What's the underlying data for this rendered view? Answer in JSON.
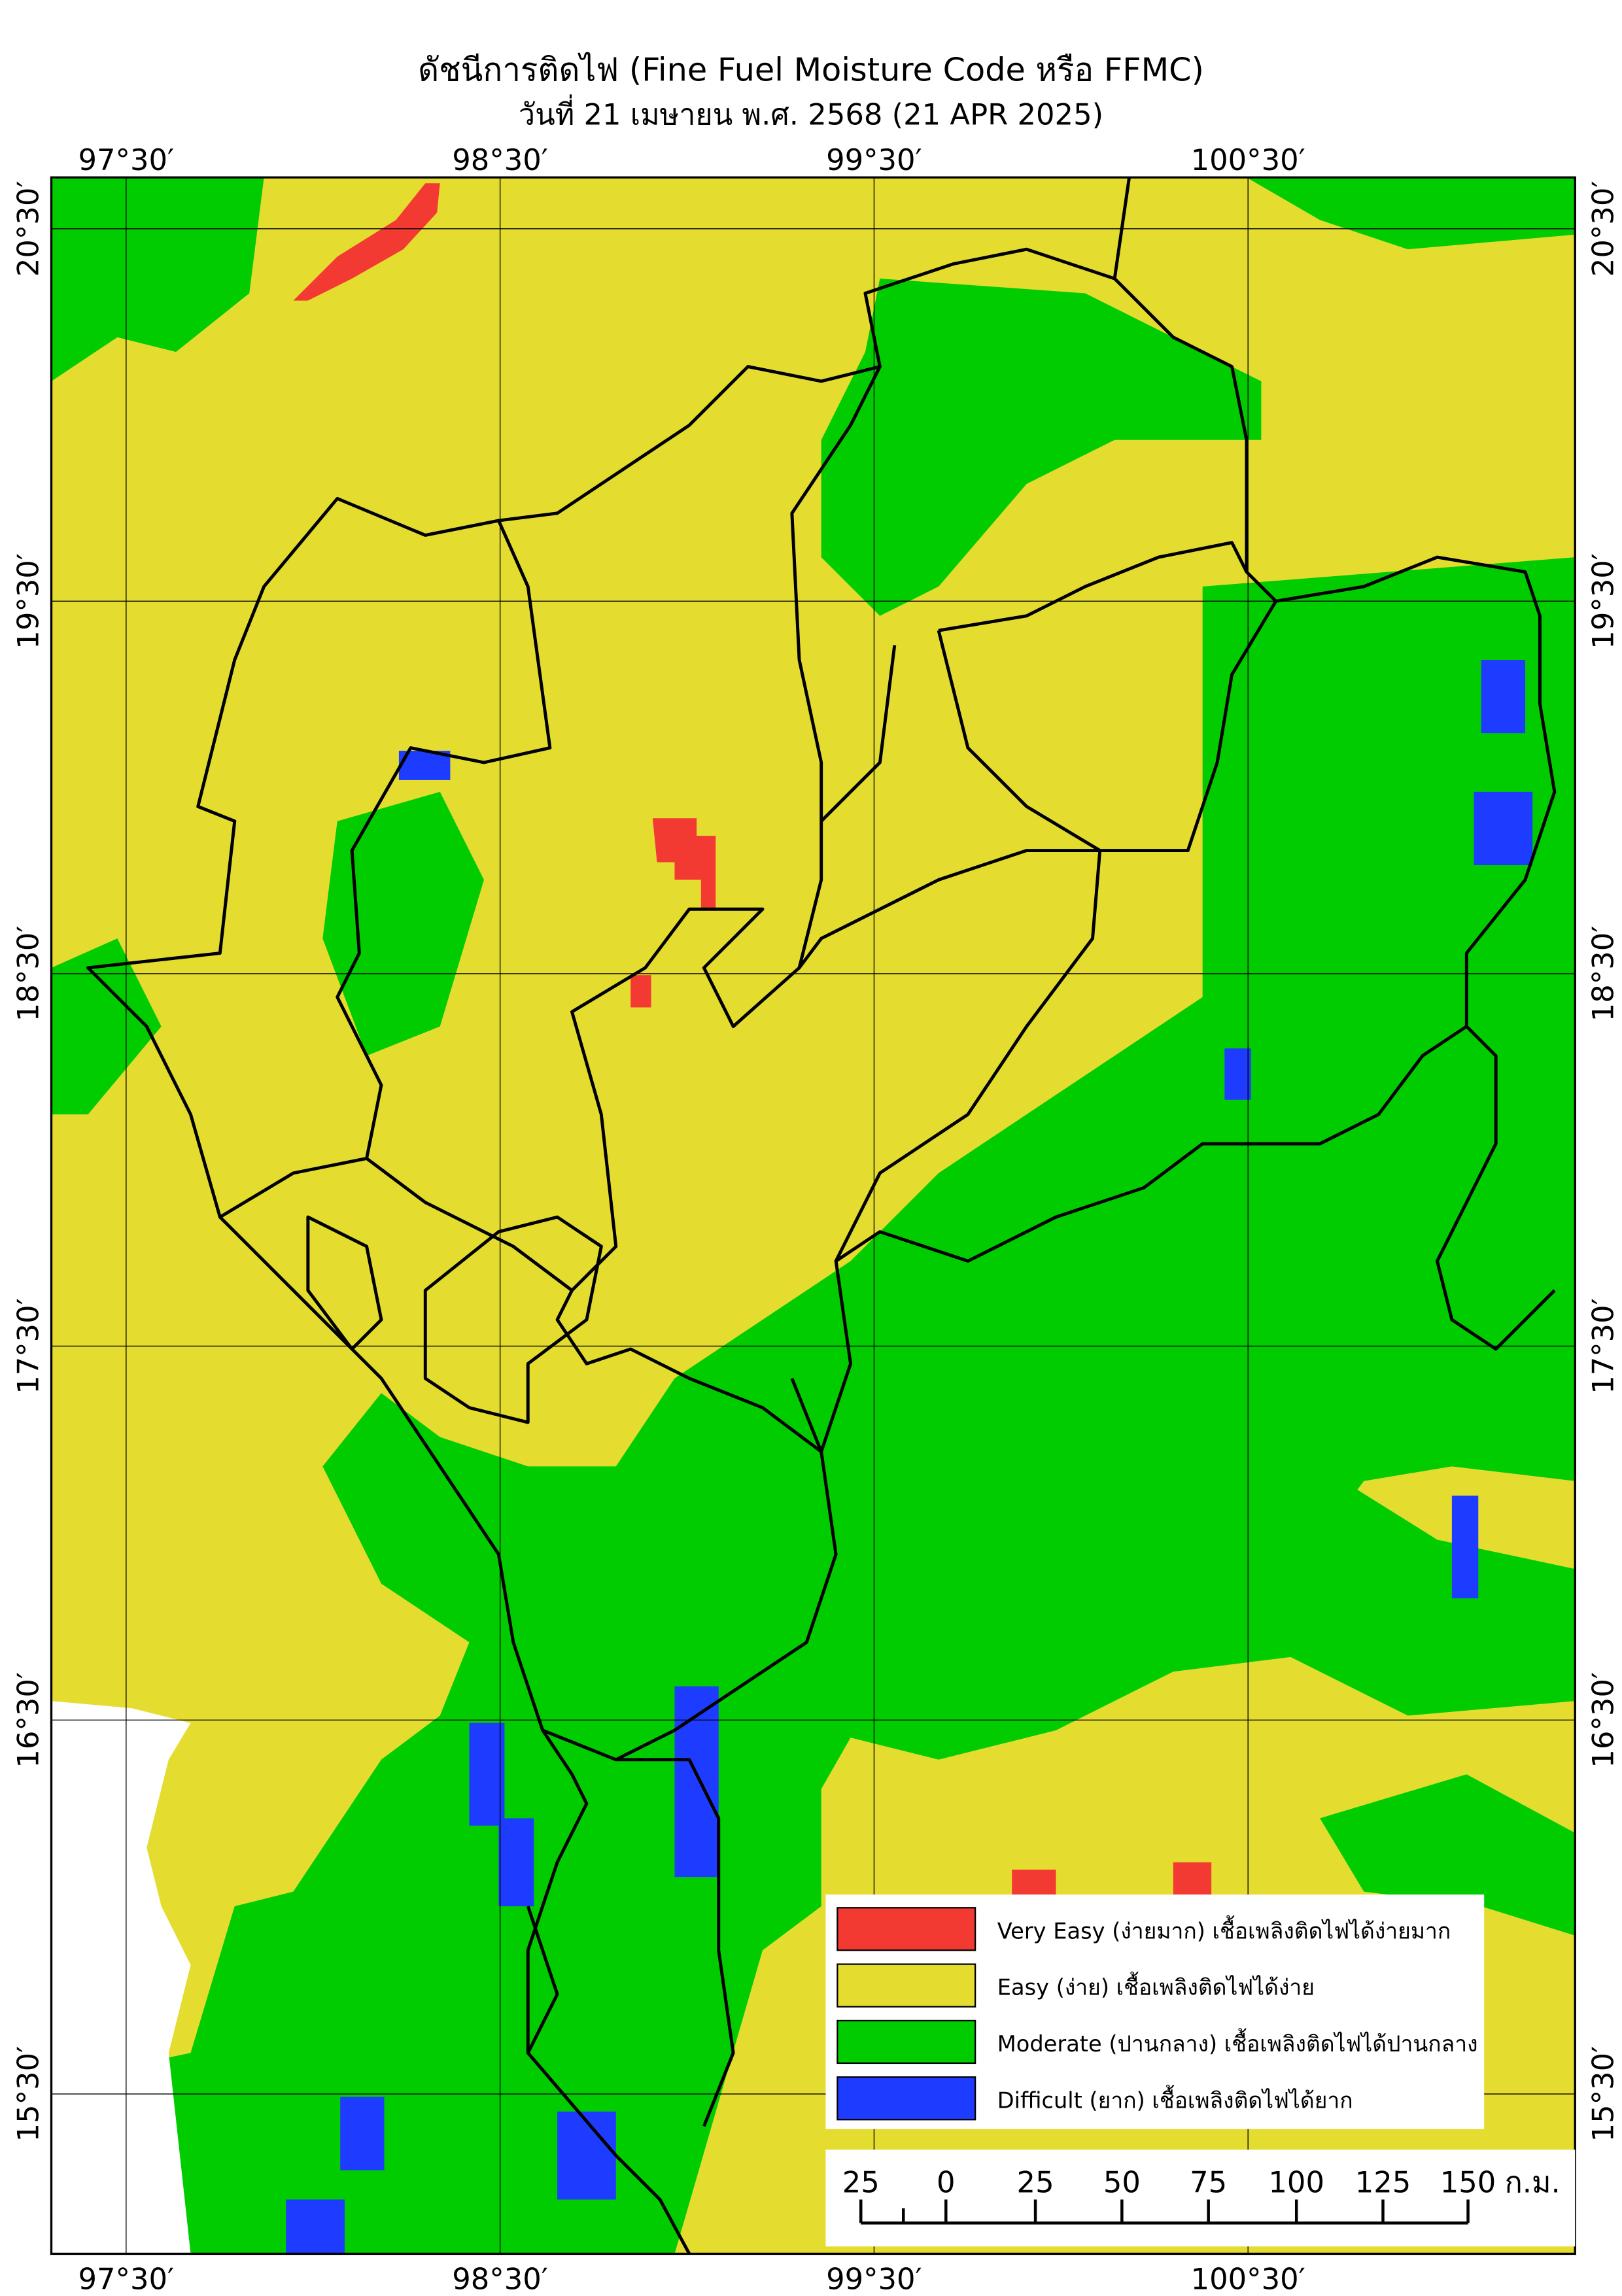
{
  "header": {
    "title": "ดัชนีการติดไฟ (Fine Fuel Moisture Code หรือ FFMC)",
    "subtitle": "วันที่ 21 เมษายน พ.ศ. 2568 (21 APR 2025)"
  },
  "map": {
    "longitude_labels": [
      "97°30′",
      "98°30′",
      "99°30′",
      "100°30′"
    ],
    "latitude_labels": [
      "20°30′",
      "19°30′",
      "18°30′",
      "17°30′",
      "16°30′",
      "15°30′"
    ]
  },
  "legend": [
    {
      "label": "Very Easy (ง่ายมาก) เชื้อเพลิงติดไฟได้ง่ายมาก",
      "color": "#f23a32"
    },
    {
      "label": "Easy (ง่าย) เชื้อเพลิงติดไฟได้ง่าย",
      "color": "#e5dc30"
    },
    {
      "label": "Moderate (ปานกลาง) เชื้อเพลิงติดไฟได้ปานกลาง",
      "color": "#00cc00"
    },
    {
      "label": "Difficult (ยาก) เชื้อเพลิงติดไฟได้ยาก",
      "color": "#1e3cff"
    }
  ],
  "scale_bar": {
    "labels": [
      "25",
      "0",
      "25",
      "50",
      "75",
      "100",
      "125",
      "150"
    ],
    "unit": "ก.ม."
  }
}
